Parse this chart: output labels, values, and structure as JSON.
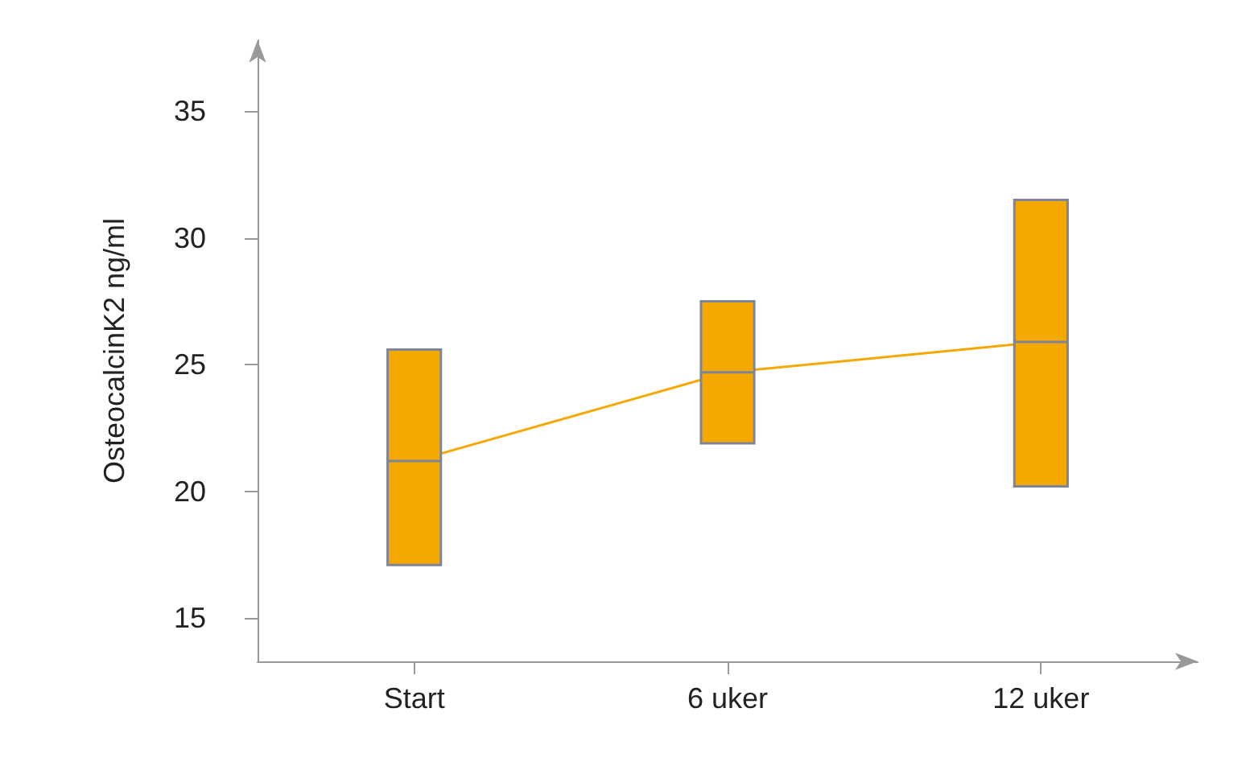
{
  "chart_data": {
    "type": "box",
    "ylabel": "OsteocalcinK2 ng/ml",
    "categories": [
      "Start",
      "6 uker",
      "12 uker"
    ],
    "ylim": [
      13.3,
      37.8
    ],
    "yticks": [
      15,
      20,
      25,
      30,
      35
    ],
    "grid": false,
    "series": [
      {
        "color": "#f5a800",
        "boxes": [
          {
            "low": 17.1,
            "q1": 17.1,
            "median": 21.2,
            "q3": 25.6,
            "high": 25.6
          },
          {
            "low": 21.9,
            "q1": 21.9,
            "median": 24.7,
            "q3": 27.5,
            "high": 27.5
          },
          {
            "low": 20.2,
            "q1": 20.2,
            "median": 25.9,
            "q3": 31.5,
            "high": 31.5
          }
        ]
      },
      {
        "type": "line",
        "color": "#f5a800",
        "values": [
          21.2,
          24.7,
          25.9
        ]
      }
    ]
  }
}
